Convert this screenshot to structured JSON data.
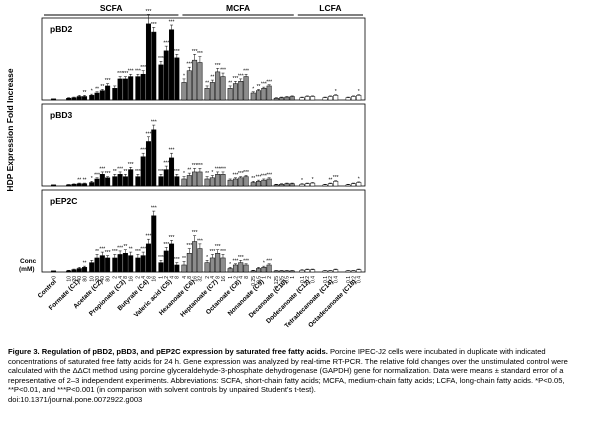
{
  "chart_data": {
    "type": "bar",
    "ylabel": "HDP Expression Fold  Increase",
    "conc_label": "Conc",
    "conc_unit": "(mM)",
    "groups": [
      {
        "label": "SCFA",
        "from": 0,
        "to": 5
      },
      {
        "label": "MCFA",
        "from": 6,
        "to": 10
      },
      {
        "label": "LCFA",
        "from": 11,
        "to": 13
      }
    ],
    "panel_ylim": [
      0,
      70
    ],
    "compounds": [
      {
        "name": "Control",
        "conc": [
          "0"
        ]
      },
      {
        "name": "Formate (C1)",
        "conc": [
          "10",
          "20",
          "40",
          "80"
        ]
      },
      {
        "name": "Acetate (C2)",
        "conc": [
          "10",
          "20",
          "40",
          "80"
        ]
      },
      {
        "name": "Propionate (C3)",
        "conc": [
          "2",
          "4",
          "8",
          "16"
        ]
      },
      {
        "name": "Butyrate (C4)",
        "conc": [
          "2",
          "4",
          "8",
          "16"
        ]
      },
      {
        "name": "Valeric acid (C5)",
        "conc": [
          "1",
          "2",
          "4",
          "8"
        ]
      },
      {
        "name": "Hexanoate (C6)",
        "conc": [
          "4",
          "8",
          "16",
          "32"
        ]
      },
      {
        "name": "Heptanoate (C7)",
        "conc": [
          "2",
          "4",
          "8",
          "16"
        ]
      },
      {
        "name": "Octanoate (C8)",
        "conc": [
          "1",
          "2",
          "4",
          "8"
        ]
      },
      {
        "name": "Nonanoate (C9)",
        "conc": [
          "0.25",
          "0.5",
          "1",
          "2"
        ]
      },
      {
        "name": "Decanoate (C10)",
        "conc": [
          "0.125",
          "0.25",
          "0.5",
          "1"
        ]
      },
      {
        "name": "Dodecanoate (C12)",
        "conc": [
          "0.1",
          "0.2",
          "0.4"
        ]
      },
      {
        "name": "Tetradecanoate (C14)",
        "conc": [
          "0.1",
          "0.2",
          "0.4"
        ]
      },
      {
        "name": "Octadecanoate (C18)",
        "conc": [
          "0.1",
          "0.2",
          "0.4"
        ]
      }
    ],
    "panels": [
      {
        "name": "pBD2",
        "values": [
          [
            1
          ],
          [
            1.5,
            2,
            3,
            3
          ],
          [
            4,
            6,
            8,
            12
          ],
          [
            10,
            18,
            18,
            20
          ],
          [
            20,
            22,
            65,
            58
          ],
          [
            30,
            42,
            60,
            36
          ],
          [
            15,
            25,
            34,
            32
          ],
          [
            10,
            15,
            24,
            20
          ],
          [
            10,
            14,
            16,
            20
          ],
          [
            6,
            8,
            10,
            12
          ],
          [
            1.5,
            2,
            2.5,
            3
          ],
          [
            2,
            3,
            3
          ],
          [
            2,
            3,
            4
          ],
          [
            2,
            3,
            4
          ]
        ],
        "errors": [
          [
            0
          ],
          [
            0.5,
            0.5,
            1,
            1
          ],
          [
            1,
            1,
            1,
            2
          ],
          [
            2,
            2,
            2,
            2
          ],
          [
            2,
            3,
            8,
            4
          ],
          [
            3,
            4,
            4,
            3
          ],
          [
            3,
            3,
            5,
            5
          ],
          [
            2,
            2,
            3,
            3
          ],
          [
            2,
            2,
            2,
            2
          ],
          [
            1,
            1,
            1,
            1
          ],
          [
            0.5,
            0.5,
            0.5,
            0.5
          ],
          [
            0.5,
            0.5,
            0.5
          ],
          [
            0.5,
            0.5,
            0.5
          ],
          [
            0.5,
            0.5,
            0.5
          ]
        ],
        "stars": [
          [
            ""
          ],
          [
            "",
            "",
            "",
            "**"
          ],
          [
            "*",
            "**",
            "**",
            "***"
          ],
          [
            "",
            "***",
            "***",
            "***"
          ],
          [
            "***",
            "***",
            "***",
            "***"
          ],
          [
            "***",
            "***",
            "***",
            "***"
          ],
          [
            "*",
            "***",
            "***",
            "***"
          ],
          [
            "**",
            "**",
            "***",
            "***"
          ],
          [
            "**",
            "***",
            "***",
            "***"
          ],
          [
            "*",
            "**",
            "***",
            "***"
          ],
          [
            "",
            "",
            "",
            ""
          ],
          [
            "",
            "",
            ""
          ],
          [
            "",
            "",
            "*"
          ],
          [
            "",
            "",
            "*"
          ]
        ]
      },
      {
        "name": "pBD3",
        "values": [
          [
            1
          ],
          [
            1,
            1.5,
            2,
            2
          ],
          [
            3,
            6,
            10,
            7
          ],
          [
            8,
            10,
            8,
            14
          ],
          [
            8,
            25,
            38,
            48
          ],
          [
            8,
            14,
            24,
            8
          ],
          [
            6,
            9,
            12,
            12
          ],
          [
            6,
            7,
            10,
            10
          ],
          [
            5,
            6,
            7,
            8
          ],
          [
            3,
            4,
            5,
            6
          ],
          [
            1,
            1.5,
            2,
            2
          ],
          [
            1.5,
            2,
            2.5
          ],
          [
            1,
            2,
            4
          ],
          [
            1,
            2,
            3
          ]
        ],
        "errors": [
          [
            0
          ],
          [
            0.3,
            0.3,
            0.5,
            0.5
          ],
          [
            1,
            1,
            2,
            1
          ],
          [
            2,
            2,
            2,
            2
          ],
          [
            2,
            3,
            4,
            4
          ],
          [
            2,
            3,
            4,
            2
          ],
          [
            2,
            2,
            3,
            3
          ],
          [
            2,
            2,
            2,
            2
          ],
          [
            1,
            1,
            1,
            1
          ],
          [
            1,
            1,
            1,
            1
          ],
          [
            0.5,
            0.5,
            0.5,
            0.5
          ],
          [
            0.5,
            0.5,
            0.5
          ],
          [
            0.5,
            0.5,
            0.5
          ],
          [
            0.5,
            0.5,
            0.5
          ]
        ],
        "stars": [
          [
            ""
          ],
          [
            "",
            "",
            "**",
            "**"
          ],
          [
            "*",
            "***",
            "***",
            "***"
          ],
          [
            "**",
            "***",
            "**",
            "***"
          ],
          [
            "***",
            "***",
            "***",
            "***"
          ],
          [
            "***",
            "***",
            "***",
            "***"
          ],
          [
            "*",
            "**",
            "***",
            "***"
          ],
          [
            "**",
            "*",
            "***",
            "***"
          ],
          [
            "",
            "***",
            "***",
            "***"
          ],
          [
            "**",
            "***",
            "***",
            "***"
          ],
          [
            "",
            "",
            "",
            ""
          ],
          [
            "*",
            "",
            "*"
          ],
          [
            "",
            "**",
            "***"
          ],
          [
            "",
            "",
            "*"
          ]
        ]
      },
      {
        "name": "pEP2C",
        "values": [
          [
            1
          ],
          [
            1,
            2,
            3,
            4
          ],
          [
            8,
            12,
            14,
            12
          ],
          [
            12,
            15,
            16,
            14
          ],
          [
            12,
            14,
            24,
            48
          ],
          [
            8,
            18,
            24,
            6
          ],
          [
            6,
            16,
            26,
            20
          ],
          [
            8,
            12,
            16,
            12
          ],
          [
            3,
            6,
            8,
            6
          ],
          [
            1,
            3,
            4,
            6
          ],
          [
            1,
            1,
            1,
            1
          ],
          [
            1.5,
            2,
            2
          ],
          [
            1,
            1,
            2
          ],
          [
            1,
            1,
            2
          ]
        ],
        "errors": [
          [
            0
          ],
          [
            0.5,
            0.5,
            1,
            1
          ],
          [
            2,
            3,
            3,
            2
          ],
          [
            3,
            3,
            3,
            3
          ],
          [
            3,
            3,
            4,
            4
          ],
          [
            2,
            3,
            3,
            2
          ],
          [
            3,
            4,
            5,
            4
          ],
          [
            2,
            3,
            3,
            3
          ],
          [
            1,
            1,
            2,
            1
          ],
          [
            0.5,
            1,
            1,
            1
          ],
          [
            0.3,
            0.3,
            0.3,
            0.3
          ],
          [
            0.5,
            0.5,
            0.5
          ],
          [
            0.3,
            0.3,
            0.5
          ],
          [
            0.3,
            0.3,
            0.5
          ]
        ],
        "stars": [
          [
            ""
          ],
          [
            "",
            "",
            "",
            "**"
          ],
          [
            "",
            "**",
            "***",
            "***"
          ],
          [
            "***",
            "***",
            "**",
            "**"
          ],
          [
            "***",
            "***",
            "***",
            "***"
          ],
          [
            "***",
            "***",
            "***",
            "***"
          ],
          [
            "**",
            "***",
            "***",
            "***"
          ],
          [
            "*",
            "***",
            "***",
            "***"
          ],
          [
            "*",
            "***",
            "***",
            "***"
          ],
          [
            "",
            "",
            "*",
            "***"
          ],
          [
            "",
            "",
            "",
            ""
          ],
          [
            "",
            "",
            ""
          ],
          [
            "",
            "",
            ""
          ],
          [
            "",
            "",
            ""
          ]
        ]
      }
    ]
  },
  "caption": {
    "title": "Figure 3. Regulation of pBD2, pBD3, and pEP2C expression by saturated free fatty acids.",
    "body": " Porcine IPEC-J2 cells were incubated in duplicate with indicated concentrations of saturated free fatty acids for 24 h. Gene expression was analyzed by real-time RT-PCR. The relative fold changes over the unstimulated control were calculated with the ΔΔCt method using porcine glyceraldehyde-3-phosphate dehydrogenase (GAPDH) gene for normalization. Data were means ± standard error of a representative of 2–3 independent experiments. Abbreviations: SCFA, short-chain fatty acids; MCFA, medium-chain fatty acids; LCFA, long-chain fatty acids. *P<0.05, **P<0.01, and ***P<0.001 (in comparison with solvent controls by unpaired Student's t-test).",
    "doi": "doi:10.1371/journal.pone.0072922.g003"
  }
}
